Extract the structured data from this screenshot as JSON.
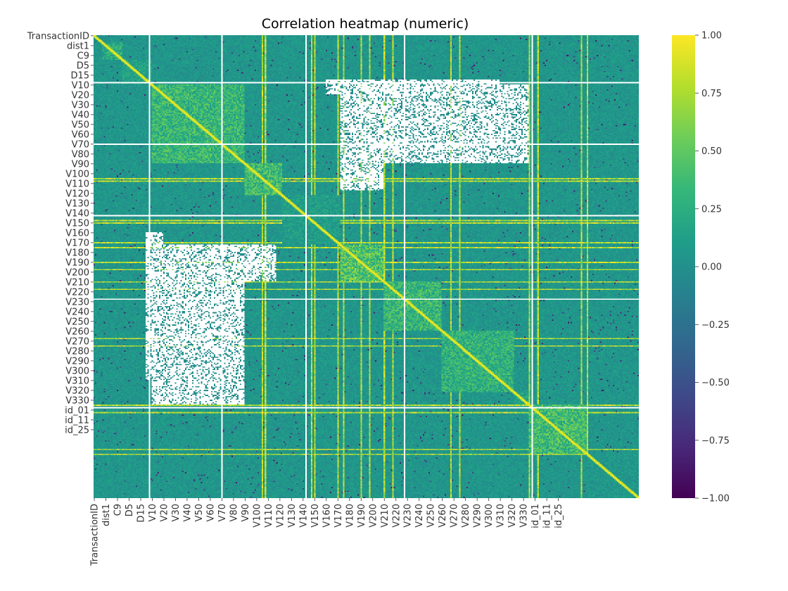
{
  "chart_data": {
    "type": "heatmap",
    "title": "Correlation heatmap (numeric)",
    "xlabel": "",
    "ylabel": "",
    "colormap": "viridis",
    "value_range": [
      -1.0,
      1.0
    ],
    "colorbar_ticks": [
      {
        "value": 1.0,
        "label": "1.00"
      },
      {
        "value": 0.75,
        "label": "0.75"
      },
      {
        "value": 0.5,
        "label": "0.50"
      },
      {
        "value": 0.25,
        "label": "0.25"
      },
      {
        "value": 0.0,
        "label": "0.00"
      },
      {
        "value": -0.25,
        "label": "−0.25"
      },
      {
        "value": -0.5,
        "label": "−0.50"
      },
      {
        "value": -0.75,
        "label": "−0.75"
      },
      {
        "value": -1.0,
        "label": "−1.00"
      }
    ],
    "n_variables": 376,
    "tick_labels": [
      {
        "label": "TransactionID",
        "index": 0
      },
      {
        "label": "dist1",
        "index": 8
      },
      {
        "label": "C9",
        "index": 16
      },
      {
        "label": "D5",
        "index": 24
      },
      {
        "label": "D15",
        "index": 32
      },
      {
        "label": "V10",
        "index": 40
      },
      {
        "label": "V20",
        "index": 48
      },
      {
        "label": "V30",
        "index": 56
      },
      {
        "label": "V40",
        "index": 64
      },
      {
        "label": "V50",
        "index": 72
      },
      {
        "label": "V60",
        "index": 80
      },
      {
        "label": "V70",
        "index": 88
      },
      {
        "label": "V80",
        "index": 96
      },
      {
        "label": "V90",
        "index": 104
      },
      {
        "label": "V100",
        "index": 112
      },
      {
        "label": "V110",
        "index": 120
      },
      {
        "label": "V120",
        "index": 128
      },
      {
        "label": "V130",
        "index": 136
      },
      {
        "label": "V140",
        "index": 144
      },
      {
        "label": "V150",
        "index": 152
      },
      {
        "label": "V160",
        "index": 160
      },
      {
        "label": "V170",
        "index": 168
      },
      {
        "label": "V180",
        "index": 176
      },
      {
        "label": "V190",
        "index": 184
      },
      {
        "label": "V200",
        "index": 192
      },
      {
        "label": "V210",
        "index": 200
      },
      {
        "label": "V220",
        "index": 208
      },
      {
        "label": "V230",
        "index": 216
      },
      {
        "label": "V240",
        "index": 224
      },
      {
        "label": "V250",
        "index": 232
      },
      {
        "label": "V260",
        "index": 240
      },
      {
        "label": "V270",
        "index": 248
      },
      {
        "label": "V280",
        "index": 256
      },
      {
        "label": "V290",
        "index": 264
      },
      {
        "label": "V300",
        "index": 272
      },
      {
        "label": "V310",
        "index": 280
      },
      {
        "label": "V320",
        "index": 288
      },
      {
        "label": "V330",
        "index": 296
      },
      {
        "label": "id_01",
        "index": 304
      },
      {
        "label": "id_11",
        "index": 312
      },
      {
        "label": "id_25",
        "index": 320
      }
    ],
    "blank_lines": [
      38,
      88,
      146,
      214,
      302
    ],
    "blocks": [
      {
        "start": 0,
        "end": 6,
        "strength": 0.15
      },
      {
        "start": 6,
        "end": 20,
        "strength": 0.45
      },
      {
        "start": 20,
        "end": 40,
        "strength": 0.35
      },
      {
        "start": 40,
        "end": 104,
        "strength": 0.55
      },
      {
        "start": 104,
        "end": 130,
        "strength": 0.6
      },
      {
        "start": 130,
        "end": 170,
        "strength": 0.3
      },
      {
        "start": 170,
        "end": 200,
        "strength": 0.7
      },
      {
        "start": 200,
        "end": 240,
        "strength": 0.55
      },
      {
        "start": 240,
        "end": 290,
        "strength": 0.5
      },
      {
        "start": 290,
        "end": 300,
        "strength": 0.35
      },
      {
        "start": 300,
        "end": 340,
        "strength": 0.6
      },
      {
        "start": 340,
        "end": 376,
        "strength": 0.25
      }
    ],
    "hot_columns": [
      116,
      118,
      150,
      152,
      168,
      172,
      184,
      190,
      200,
      206,
      246,
      252,
      300,
      306,
      336,
      340
    ],
    "missing_regions": [
      {
        "rows": [
          40,
          104
        ],
        "cols": [
          170,
          300
        ]
      },
      {
        "rows": [
          160,
          280
        ],
        "cols": [
          36,
          48
        ]
      },
      {
        "rows": [
          104,
          126
        ],
        "cols": [
          170,
          200
        ]
      }
    ],
    "grid": false,
    "legend": "colorbar-right"
  }
}
